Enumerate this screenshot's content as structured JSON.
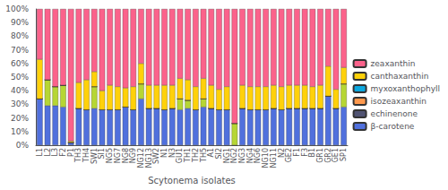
{
  "chart_data": {
    "type": "bar",
    "stacked": true,
    "grid": false,
    "legend": "right",
    "xlabel": "Scytonema isolates",
    "categories": [
      "L1",
      "L2",
      "L3",
      "F2",
      "P1",
      "TH3",
      "TH4",
      "SW1",
      "SI1",
      "NG5",
      "NG7",
      "NG8",
      "NG9",
      "NG12",
      "NG13",
      "SW2",
      "N1",
      "N3",
      "GU1",
      "TH1",
      "TH2",
      "TH5",
      "A1",
      "SI2",
      "NG1",
      "NG2",
      "NG3",
      "NG4",
      "NG6",
      "NG10",
      "NG11",
      "N2",
      "GE2",
      "F1",
      "F3",
      "B1",
      "GR1",
      "GR2",
      "GE1",
      "SP1"
    ],
    "series": [
      {
        "name": "β-carotene",
        "values": [
          34,
          29,
          29,
          28,
          2,
          27,
          26,
          27,
          26,
          26,
          26,
          28,
          26,
          34,
          27,
          27,
          26,
          27,
          26,
          27,
          26,
          28,
          27,
          26,
          26,
          0,
          27,
          26,
          26,
          26,
          27,
          26,
          27,
          27,
          27,
          27,
          27,
          36,
          27,
          28
        ]
      },
      {
        "values": [
          0,
          19,
          14,
          16,
          0,
          0,
          0,
          16,
          0,
          0,
          0,
          0,
          0,
          11,
          0,
          0,
          0,
          0,
          8,
          6,
          0,
          6,
          0,
          0,
          0,
          16,
          0,
          0,
          0,
          0,
          0,
          0,
          0,
          0,
          0,
          0,
          0,
          0,
          0,
          17
        ]
      },
      {
        "name": "echinenone",
        "values": [
          0,
          0,
          0,
          0,
          0,
          0,
          0,
          0,
          0,
          0,
          0,
          0,
          0,
          0,
          0,
          0,
          0,
          0,
          0,
          0,
          0,
          0,
          0,
          0,
          0,
          0,
          0,
          0,
          0,
          0,
          0,
          0,
          0,
          0,
          0,
          0,
          0,
          0,
          0,
          0
        ]
      },
      {
        "name": "isozeaxanthin",
        "values": [
          0,
          0,
          0,
          0,
          0,
          0,
          0,
          0,
          0,
          0,
          0,
          0,
          0,
          0,
          0,
          0,
          0,
          0,
          0,
          0,
          0,
          0,
          0,
          0,
          0,
          0,
          0,
          0,
          0,
          0,
          0,
          0,
          0,
          0,
          0,
          0,
          0,
          0,
          0,
          0
        ]
      },
      {
        "name": "myxoxanthophyll",
        "values": [
          0,
          0,
          0,
          0,
          0,
          0,
          0,
          0,
          0,
          0,
          0,
          0,
          0,
          0,
          0,
          0,
          0,
          0,
          0,
          0,
          0,
          0,
          0,
          0,
          0,
          0,
          0,
          0,
          0,
          0,
          0,
          0,
          0,
          0,
          0,
          0,
          0,
          0,
          0,
          0
        ]
      },
      {
        "name": "canthaxanthin",
        "values": [
          29,
          0,
          0,
          0,
          1,
          19,
          22,
          11,
          14,
          18,
          17,
          14,
          17,
          15,
          17,
          17,
          18,
          17,
          15,
          15,
          17,
          15,
          17,
          15,
          17,
          0,
          17,
          17,
          17,
          17,
          17,
          17,
          17,
          17,
          17,
          16,
          17,
          22,
          14,
          12
        ]
      },
      {
        "name": "zeaxanthin",
        "values": [
          37,
          52,
          57,
          56,
          97,
          54,
          52,
          46,
          60,
          56,
          57,
          58,
          57,
          40,
          56,
          56,
          56,
          56,
          51,
          52,
          57,
          51,
          56,
          59,
          57,
          84,
          56,
          57,
          57,
          57,
          56,
          57,
          56,
          56,
          56,
          57,
          56,
          42,
          59,
          43
        ]
      }
    ],
    "ylim": [
      0,
      100
    ],
    "yticks": [
      {
        "value": 0,
        "label": "0%"
      },
      {
        "value": 10,
        "label": "10%"
      },
      {
        "value": 20,
        "label": "20%"
      },
      {
        "value": 30,
        "label": "30%"
      },
      {
        "value": 40,
        "label": "40%"
      },
      {
        "value": 50,
        "label": "50%"
      },
      {
        "value": 60,
        "label": "60%"
      },
      {
        "value": 70,
        "label": "70%"
      },
      {
        "value": 80,
        "label": "80%"
      },
      {
        "value": 90,
        "label": "90%"
      },
      {
        "value": 100,
        "label": "100%"
      }
    ]
  }
}
